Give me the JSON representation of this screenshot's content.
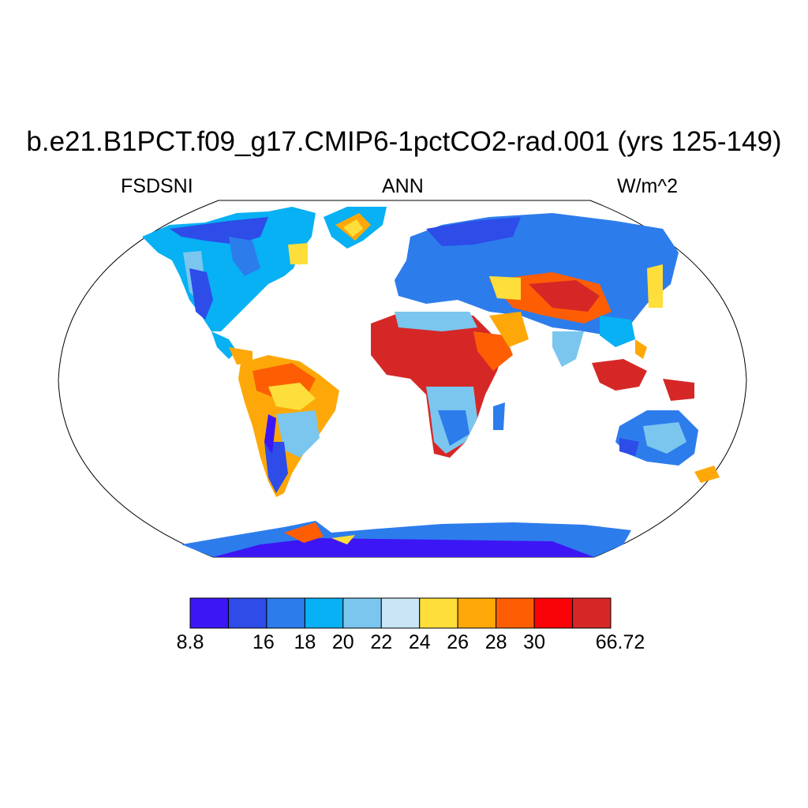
{
  "title": "b.e21.B1PCT.f09_g17.CMIP6-1pctCO2-rad.001 (yrs 125-149)",
  "left_label": "FSDSNI",
  "center_label": "ANN",
  "right_label": "W/m^2",
  "colorbar": {
    "colors": [
      "#3d16f5",
      "#2d4ce8",
      "#2d7cec",
      "#08b0f4",
      "#7ac6ee",
      "#c9e5f6",
      "#fede3a",
      "#fda808",
      "#fd5e04",
      "#f90208",
      "#d62727"
    ],
    "tick_labels": [
      "8.8",
      "16",
      "18",
      "20",
      "22",
      "24",
      "26",
      "28",
      "30",
      "66.72"
    ]
  },
  "colors": {
    "land_high": "#d62727",
    "land_low": "#3d16f5",
    "ocean": "#ffffff",
    "outline": "#000000"
  }
}
